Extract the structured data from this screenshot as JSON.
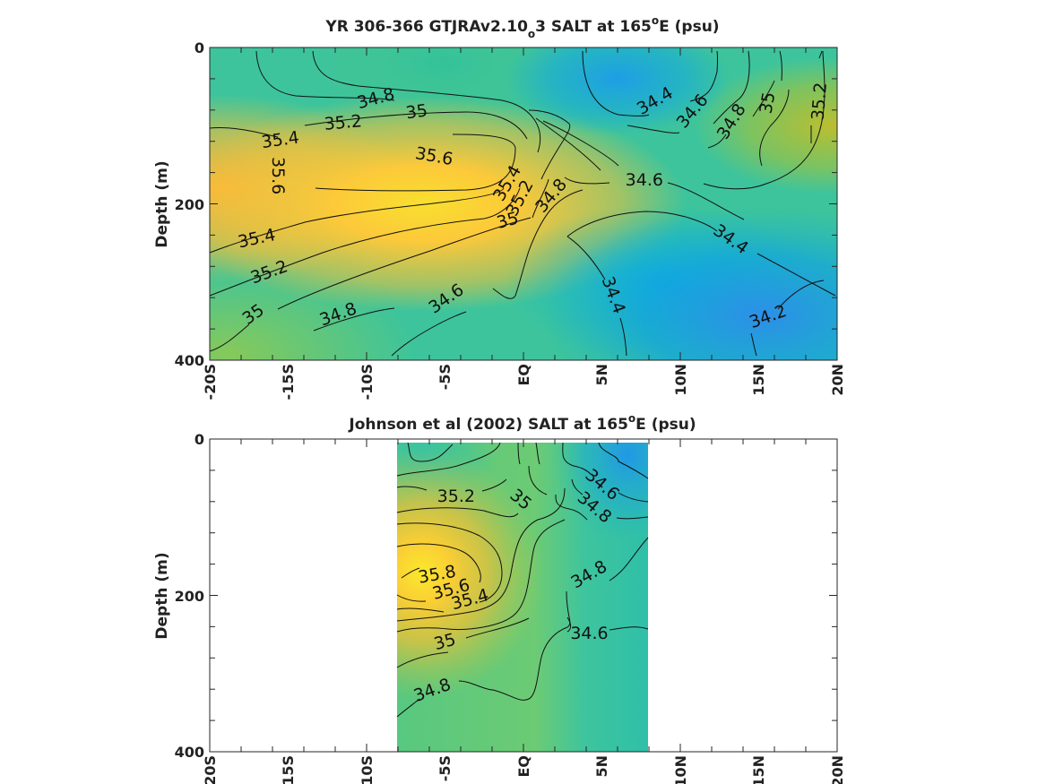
{
  "chart_data": [
    {
      "type": "heatmap",
      "title": {
        "pre": "YR 306-366 GTJRAv2.10",
        "sub": "o",
        "mid": "3 SALT at 165",
        "sup": "o",
        "post": "E (psu)"
      },
      "ylabel": "Depth (m)",
      "y_ticks": [
        "0",
        "200",
        "400"
      ],
      "x_ticks": [
        "-20S",
        "-15S",
        "-10S",
        "-5S",
        "EQ",
        "5N",
        "10N",
        "15N",
        "20N"
      ],
      "xlim": [
        -20,
        20
      ],
      "ylim": [
        0,
        400
      ],
      "data_xrange": [
        -20,
        20
      ],
      "contour_levels": [
        34.2,
        34.4,
        34.6,
        34.8,
        35,
        35.2,
        35.4,
        35.6
      ],
      "contour_labels": [
        {
          "text": "34.8",
          "lat": -9.4,
          "depth": 66,
          "angle": -15
        },
        {
          "text": "35",
          "lat": -6.8,
          "depth": 83,
          "angle": -8
        },
        {
          "text": "35.2",
          "lat": -11.5,
          "depth": 97,
          "angle": -5
        },
        {
          "text": "35.4",
          "lat": -15.5,
          "depth": 119,
          "angle": -8
        },
        {
          "text": "35.6",
          "lat": -5.7,
          "depth": 140,
          "angle": 10
        },
        {
          "text": "35.6",
          "lat": -15.7,
          "depth": 164,
          "angle": 90
        },
        {
          "text": "35.4",
          "lat": -1.0,
          "depth": 174,
          "angle": -60
        },
        {
          "text": "35.2",
          "lat": -0.2,
          "depth": 193,
          "angle": -62
        },
        {
          "text": "34.8",
          "lat": 1.8,
          "depth": 190,
          "angle": -50
        },
        {
          "text": "35",
          "lat": -1.0,
          "depth": 222,
          "angle": -15
        },
        {
          "text": "34.6",
          "lat": 7.7,
          "depth": 170,
          "angle": 0
        },
        {
          "text": "35.4",
          "lat": -17.0,
          "depth": 245,
          "angle": -12
        },
        {
          "text": "35.2",
          "lat": -16.2,
          "depth": 288,
          "angle": -20
        },
        {
          "text": "35",
          "lat": -17.2,
          "depth": 342,
          "angle": -35
        },
        {
          "text": "34.8",
          "lat": -11.8,
          "depth": 342,
          "angle": -20
        },
        {
          "text": "34.6",
          "lat": -4.9,
          "depth": 322,
          "angle": -35
        },
        {
          "text": "34.4",
          "lat": 5.7,
          "depth": 317,
          "angle": 70
        },
        {
          "text": "34.4",
          "lat": 13.2,
          "depth": 246,
          "angle": 35
        },
        {
          "text": "34.2",
          "lat": 15.6,
          "depth": 345,
          "angle": -20
        },
        {
          "text": "34.4",
          "lat": 8.4,
          "depth": 69,
          "angle": -30
        },
        {
          "text": "34.6",
          "lat": 10.8,
          "depth": 82,
          "angle": -50
        },
        {
          "text": "34.8",
          "lat": 13.3,
          "depth": 95,
          "angle": -58
        },
        {
          "text": "35",
          "lat": 15.6,
          "depth": 71,
          "angle": -80
        },
        {
          "text": "35.2",
          "lat": 18.9,
          "depth": 69,
          "angle": -85
        }
      ]
    },
    {
      "type": "heatmap",
      "title": {
        "pre": "Johnson et al (2002) SALT at 165",
        "sup": "o",
        "post": "E (psu)"
      },
      "ylabel": "Depth (m)",
      "y_ticks": [
        "0",
        "200",
        "400"
      ],
      "x_ticks": [
        "-20S",
        "-15S",
        "-10S",
        "-5S",
        "EQ",
        "5N",
        "10N",
        "15N",
        "20N"
      ],
      "xlim": [
        -20,
        20
      ],
      "ylim": [
        0,
        400
      ],
      "data_xrange": [
        -8,
        8
      ],
      "contour_levels": [
        34.6,
        34.8,
        35,
        35.2,
        35.4,
        35.6,
        35.8
      ],
      "contour_labels": [
        {
          "text": "35.2",
          "lat": -4.3,
          "depth": 74,
          "angle": 0
        },
        {
          "text": "35",
          "lat": -0.2,
          "depth": 78,
          "angle": 40
        },
        {
          "text": "34.6",
          "lat": 5.0,
          "depth": 59,
          "angle": 40
        },
        {
          "text": "34.8",
          "lat": 4.5,
          "depth": 88,
          "angle": 40
        },
        {
          "text": "35.8",
          "lat": -5.5,
          "depth": 174,
          "angle": -10
        },
        {
          "text": "35.6",
          "lat": -4.6,
          "depth": 193,
          "angle": -15
        },
        {
          "text": "35.4",
          "lat": -3.4,
          "depth": 206,
          "angle": -15
        },
        {
          "text": "34.8",
          "lat": 4.2,
          "depth": 174,
          "angle": -30
        },
        {
          "text": "34.6",
          "lat": 4.2,
          "depth": 249,
          "angle": 0
        },
        {
          "text": "35",
          "lat": -5.0,
          "depth": 260,
          "angle": -15
        },
        {
          "text": "34.8",
          "lat": -5.8,
          "depth": 322,
          "angle": -20
        }
      ]
    }
  ]
}
